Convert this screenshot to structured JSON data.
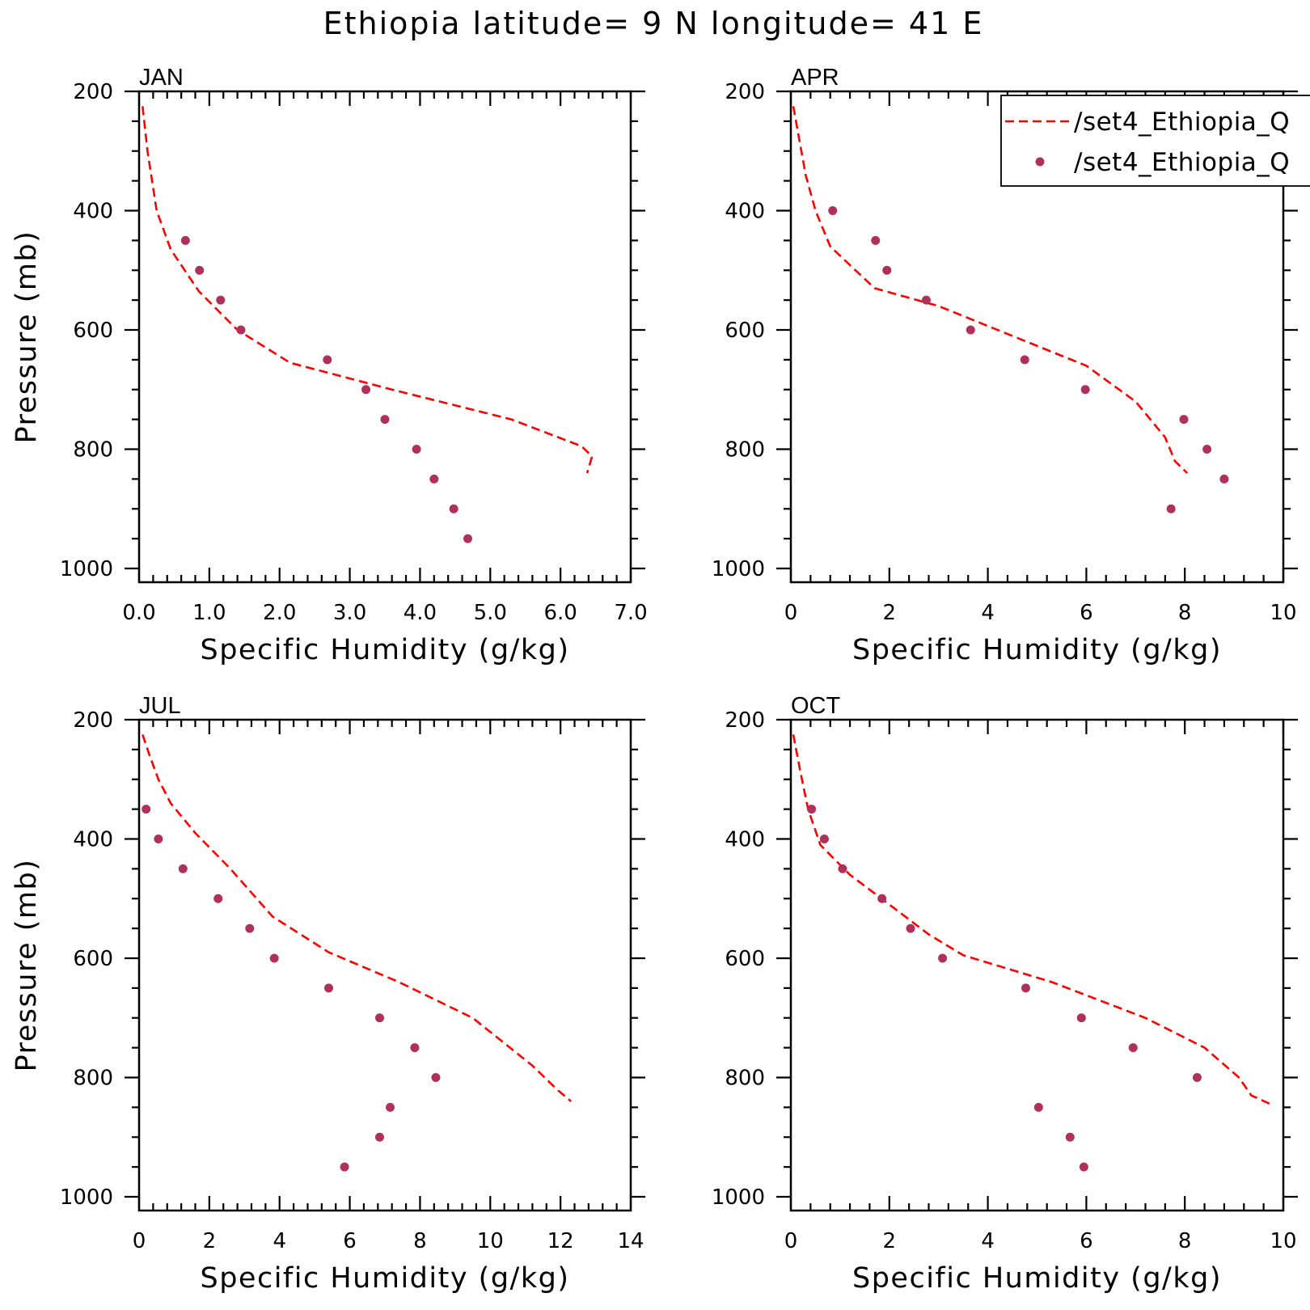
{
  "figure": {
    "title": "Ethiopia  latitude= 9 N longitude= 41 E"
  },
  "legend": {
    "entries": [
      {
        "label": "/set4_Ethiopia_Q",
        "style": "dashed-line",
        "color": "#ff0000"
      },
      {
        "label": "/set4_Ethiopia_Q",
        "style": "marker",
        "color": "#b0305c"
      }
    ],
    "placement": "top-right of APR panel, clipped at figure edge"
  },
  "chart_data": [
    {
      "type": "line",
      "panel": "JAN",
      "xlabel": "Specific Humidity (g/kg)",
      "ylabel": "Pressure (mb)",
      "xlim": [
        0,
        7
      ],
      "ylim": [
        200,
        1025
      ],
      "y_inverted": true,
      "xticks": [
        "0.0",
        "1.0",
        "2.0",
        "3.0",
        "4.0",
        "5.0",
        "6.0",
        "7.0"
      ],
      "xtick_values": [
        0,
        1,
        2,
        3,
        4,
        5,
        6,
        7
      ],
      "yticks": [
        "200",
        "400",
        "600",
        "800",
        "1000"
      ],
      "ytick_values": [
        200,
        400,
        600,
        800,
        1000
      ],
      "series": [
        {
          "name": "/set4_Ethiopia_Q",
          "kind": "line",
          "color": "#ff0000",
          "x": [
            0.05,
            0.12,
            0.25,
            0.45,
            0.85,
            1.4,
            2.15,
            3.6,
            5.3,
            6.3,
            6.45,
            6.38
          ],
          "y": [
            225,
            300,
            400,
            465,
            535,
            600,
            655,
            700,
            750,
            795,
            812,
            840
          ]
        },
        {
          "name": "/set4_Ethiopia_Q",
          "kind": "points",
          "color": "#b0305c",
          "x": [
            0.66,
            0.86,
            1.16,
            1.45,
            2.68,
            3.23,
            3.5,
            3.95,
            4.2,
            4.48,
            4.68
          ],
          "y": [
            450,
            500,
            550,
            600,
            650,
            700,
            750,
            800,
            850,
            900,
            950
          ]
        }
      ]
    },
    {
      "type": "line",
      "panel": "APR",
      "xlabel": "Specific Humidity (g/kg)",
      "ylabel": "",
      "xlim": [
        0,
        10
      ],
      "ylim": [
        200,
        1025
      ],
      "y_inverted": true,
      "xticks": [
        "0",
        "2",
        "4",
        "6",
        "8",
        "10"
      ],
      "xtick_values": [
        0,
        2,
        4,
        6,
        8,
        10
      ],
      "yticks": [
        "200",
        "400",
        "600",
        "800",
        "1000"
      ],
      "ytick_values": [
        200,
        400,
        600,
        800,
        1000
      ],
      "series": [
        {
          "name": "/set4_Ethiopia_Q",
          "kind": "line",
          "color": "#ff0000",
          "x": [
            0.05,
            0.3,
            0.5,
            0.8,
            1.7,
            3.0,
            4.5,
            6.0,
            7.0,
            7.6,
            7.8,
            8.05
          ],
          "y": [
            225,
            340,
            400,
            460,
            530,
            560,
            610,
            660,
            720,
            780,
            820,
            840
          ]
        },
        {
          "name": "/set4_Ethiopia_Q",
          "kind": "points",
          "color": "#b0305c",
          "x": [
            0.85,
            1.72,
            1.95,
            2.75,
            3.65,
            4.75,
            5.98,
            7.98,
            8.45,
            8.8,
            7.72
          ],
          "y": [
            400,
            450,
            500,
            550,
            600,
            650,
            700,
            750,
            800,
            850,
            900
          ]
        }
      ]
    },
    {
      "type": "line",
      "panel": "JUL",
      "xlabel": "Specific Humidity (g/kg)",
      "ylabel": "Pressure (mb)",
      "xlim": [
        0,
        14
      ],
      "ylim": [
        200,
        1025
      ],
      "y_inverted": true,
      "xticks": [
        "0",
        "2",
        "4",
        "6",
        "8",
        "10",
        "12",
        "14"
      ],
      "xtick_values": [
        0,
        2,
        4,
        6,
        8,
        10,
        12,
        14
      ],
      "yticks": [
        "200",
        "400",
        "600",
        "800",
        "1000"
      ],
      "ytick_values": [
        200,
        400,
        600,
        800,
        1000
      ],
      "series": [
        {
          "name": "/set4_Ethiopia_Q",
          "kind": "line",
          "color": "#ff0000",
          "x": [
            0.1,
            0.3,
            0.55,
            0.9,
            1.6,
            2.6,
            3.8,
            5.4,
            7.4,
            9.5,
            11.2,
            11.9,
            12.3
          ],
          "y": [
            225,
            260,
            300,
            340,
            390,
            450,
            530,
            590,
            640,
            700,
            780,
            820,
            840
          ]
        },
        {
          "name": "/set4_Ethiopia_Q",
          "kind": "points",
          "color": "#b0305c",
          "x": [
            0.2,
            0.55,
            1.25,
            2.25,
            3.15,
            3.85,
            5.4,
            6.85,
            7.85,
            8.45,
            7.15,
            6.85,
            5.85
          ],
          "y": [
            350,
            400,
            450,
            500,
            550,
            600,
            650,
            700,
            750,
            800,
            850,
            900,
            950
          ]
        }
      ]
    },
    {
      "type": "line",
      "panel": "OCT",
      "xlabel": "Specific Humidity (g/kg)",
      "ylabel": "",
      "xlim": [
        0,
        10
      ],
      "ylim": [
        200,
        1025
      ],
      "y_inverted": true,
      "xticks": [
        "0",
        "2",
        "4",
        "6",
        "8",
        "10"
      ],
      "xtick_values": [
        0,
        2,
        4,
        6,
        8,
        10
      ],
      "yticks": [
        "200",
        "400",
        "600",
        "800",
        "1000"
      ],
      "ytick_values": [
        200,
        400,
        600,
        800,
        1000
      ],
      "series": [
        {
          "name": "/set4_Ethiopia_Q",
          "kind": "line",
          "color": "#ff0000",
          "x": [
            0.05,
            0.2,
            0.35,
            0.6,
            1.2,
            2.0,
            2.8,
            3.5,
            5.3,
            7.2,
            8.4,
            9.1,
            9.35,
            9.75
          ],
          "y": [
            225,
            290,
            350,
            410,
            460,
            510,
            560,
            595,
            640,
            700,
            750,
            800,
            830,
            845
          ]
        },
        {
          "name": "/set4_Ethiopia_Q",
          "kind": "points",
          "color": "#b0305c",
          "x": [
            0.42,
            0.68,
            1.05,
            1.85,
            2.43,
            3.08,
            4.77,
            5.9,
            6.95,
            8.25,
            5.03,
            5.67,
            5.95
          ],
          "y": [
            350,
            400,
            450,
            500,
            550,
            600,
            650,
            700,
            750,
            800,
            850,
            900,
            950
          ]
        }
      ]
    }
  ]
}
